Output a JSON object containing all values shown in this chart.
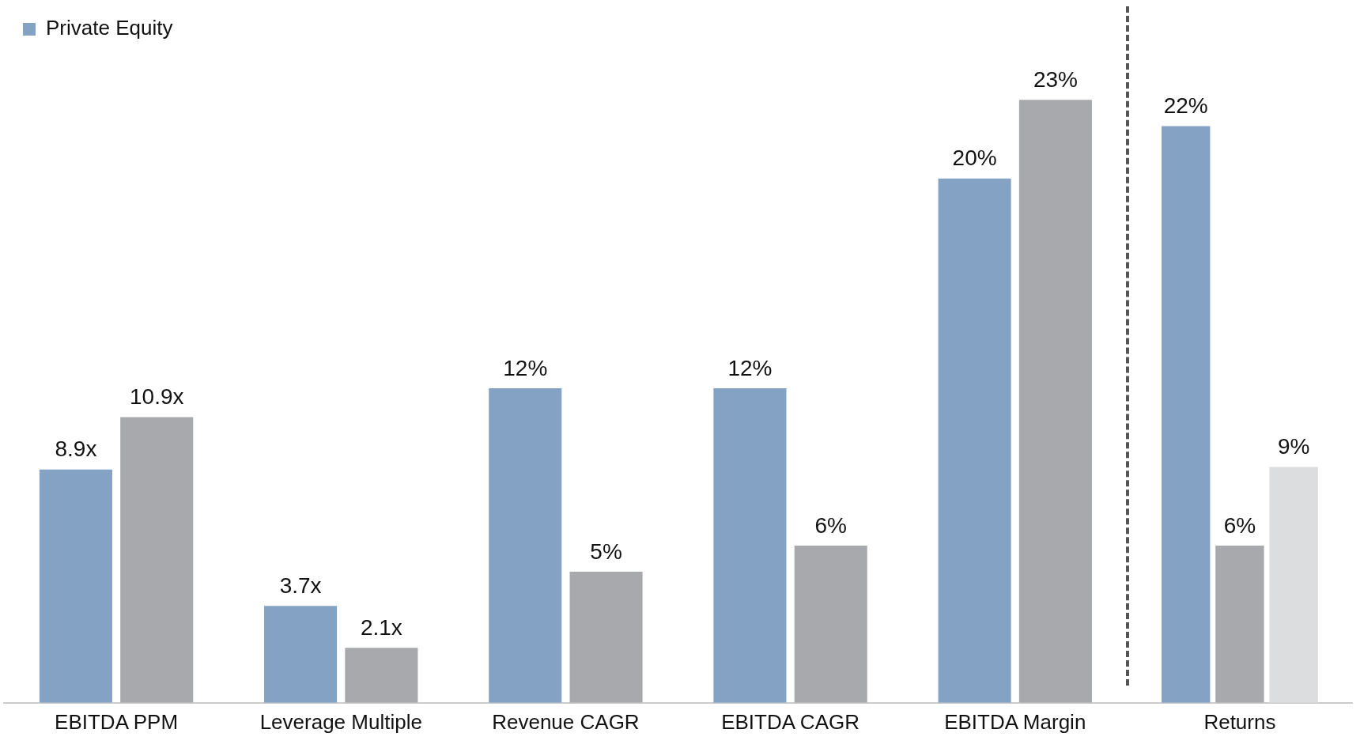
{
  "chart_data": {
    "type": "bar",
    "categories": [
      "EBITDA PPM",
      "Leverage Multiple",
      "Revenue CAGR",
      "EBITDA CAGR",
      "EBITDA Margin",
      "Returns"
    ],
    "series": [
      {
        "name": "Private Equity",
        "color": "#84a2c4",
        "values": [
          8.9,
          3.7,
          12,
          12,
          20,
          22
        ],
        "value_labels": [
          "8.9x",
          "3.7x",
          "12%",
          "12%",
          "20%",
          "22%"
        ]
      },
      {
        "color": "#a8a9ac",
        "values": [
          10.9,
          2.1,
          5,
          6,
          23,
          6
        ],
        "value_labels": [
          "10.9x",
          "2.1x",
          "5%",
          "6%",
          "23%",
          "6%"
        ]
      },
      {
        "color": "#dcdddf",
        "values": [
          null,
          null,
          null,
          null,
          null,
          9
        ],
        "value_labels": [
          null,
          null,
          null,
          null,
          null,
          "9%"
        ]
      }
    ],
    "legend": "top left",
    "grid": false
  }
}
